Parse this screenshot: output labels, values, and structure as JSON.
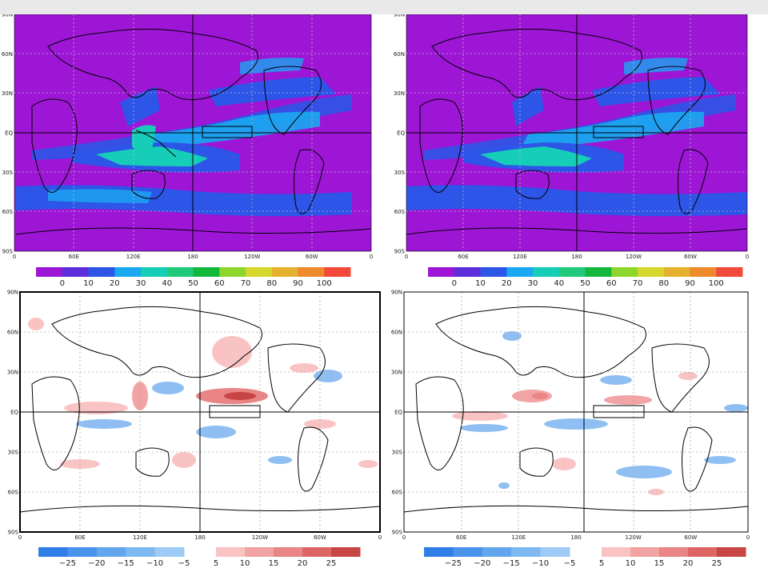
{
  "panels": [
    {
      "id": "top-left",
      "kind": "absolute"
    },
    {
      "id": "top-right",
      "kind": "absolute"
    },
    {
      "id": "bottom-left",
      "kind": "anomaly"
    },
    {
      "id": "bottom-right",
      "kind": "anomaly"
    }
  ],
  "lat_ticks": [
    "90N",
    "60N",
    "30N",
    "EQ",
    "30S",
    "60S",
    "90S"
  ],
  "lon_ticks": [
    "0",
    "60E",
    "120E",
    "180",
    "120W",
    "60W",
    "0"
  ],
  "absolute_colorbar": {
    "labels": [
      "0",
      "10",
      "20",
      "30",
      "40",
      "50",
      "60",
      "70",
      "80",
      "90",
      "100"
    ],
    "colors": [
      "#9d16d6",
      "#5c2fd9",
      "#2d55e8",
      "#1aa8f0",
      "#16cdb8",
      "#21c97a",
      "#14b73e",
      "#8fd62c",
      "#d7d62d",
      "#e6b12e",
      "#ee8a2c",
      "#f24a3a"
    ]
  },
  "anomaly_colorbar": {
    "neg_labels": [
      "−25",
      "−20",
      "−15",
      "−10",
      "−5"
    ],
    "pos_labels": [
      "5",
      "10",
      "15",
      "20",
      "25"
    ],
    "neg_colors": [
      "#2f7fe6",
      "#4a93ea",
      "#64a6ee",
      "#7fb9f2",
      "#9dcbf5"
    ],
    "pos_colors": [
      "#f9c3c3",
      "#f2a3a3",
      "#e98585",
      "#de6565",
      "#c84545"
    ]
  },
  "colors": {
    "base_purple": "#9d16d6",
    "blue": "#2d55e8",
    "cyan": "#1aa8f0",
    "teal": "#16cdb8",
    "red_anom": "#f2a3a3",
    "blue_anom": "#8fbff2"
  }
}
